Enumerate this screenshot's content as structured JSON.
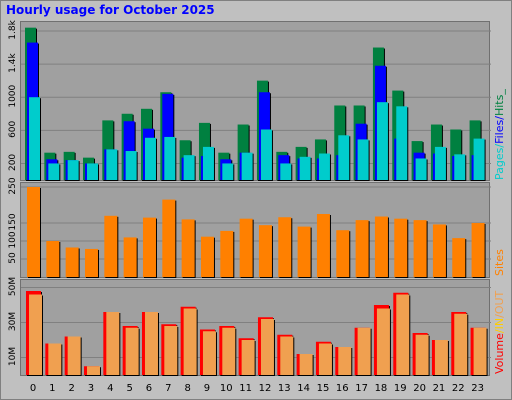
{
  "title": "Hourly usage for October 2025",
  "colors": {
    "pages": "#00cccc",
    "files": "#0000ff",
    "hits": "#008040",
    "sites": "#ff8000",
    "in": "#ffcc00",
    "out": "#f0a050",
    "volume": "#ff0000",
    "grid": "#808080",
    "bg": "#c0c0c0",
    "panel": "#a0a0a0"
  },
  "legend": {
    "pages": "Pages",
    "slash1": "/",
    "files": "Files",
    "slash2": "/",
    "hits": "Hits",
    "tail": "_",
    "sites": "Sites",
    "volume": "Volume",
    "slash3": "/",
    "in": "IN",
    "slash4": "/",
    "out": "OUT"
  },
  "chart_data": [
    {
      "type": "bar",
      "name": "hits-files-pages",
      "categories": [
        "0",
        "1",
        "2",
        "3",
        "4",
        "5",
        "6",
        "7",
        "8",
        "9",
        "10",
        "11",
        "12",
        "13",
        "14",
        "15",
        "16",
        "17",
        "18",
        "19",
        "20",
        "21",
        "22",
        "23"
      ],
      "ytick_labels": [
        "200",
        "600",
        "1000",
        "1.4k",
        "1.8k"
      ],
      "ytick_values": [
        200,
        600,
        1000,
        1400,
        1800
      ],
      "ylim": [
        0,
        1860
      ],
      "series": [
        {
          "name": "Hits",
          "values": [
            1840,
            330,
            340,
            270,
            720,
            800,
            860,
            1060,
            480,
            690,
            330,
            670,
            1200,
            340,
            400,
            490,
            900,
            900,
            1600,
            1080,
            470,
            670,
            610,
            720
          ]
        },
        {
          "name": "Files",
          "values": [
            1660,
            250,
            240,
            200,
            370,
            710,
            620,
            1040,
            270,
            290,
            250,
            330,
            1060,
            300,
            260,
            260,
            300,
            680,
            1380,
            500,
            330,
            320,
            290,
            300
          ]
        },
        {
          "name": "Pages",
          "values": [
            1000,
            200,
            240,
            200,
            370,
            350,
            510,
            520,
            300,
            400,
            200,
            330,
            610,
            200,
            280,
            320,
            540,
            490,
            940,
            890,
            260,
            400,
            310,
            500
          ]
        }
      ]
    },
    {
      "type": "bar",
      "name": "sites",
      "categories": [
        "0",
        "1",
        "2",
        "3",
        "4",
        "5",
        "6",
        "7",
        "8",
        "9",
        "10",
        "11",
        "12",
        "13",
        "14",
        "15",
        "16",
        "17",
        "18",
        "19",
        "20",
        "21",
        "22",
        "23"
      ],
      "ytick_labels": [
        "50",
        "100",
        "150",
        "250"
      ],
      "ytick_values": [
        50,
        100,
        150,
        250
      ],
      "ylim": [
        0,
        250
      ],
      "series": [
        {
          "name": "Sites",
          "values": [
            250,
            100,
            82,
            78,
            170,
            110,
            165,
            215,
            160,
            112,
            128,
            162,
            144,
            166,
            140,
            175,
            130,
            158,
            168,
            162,
            158,
            146,
            108,
            150
          ]
        }
      ]
    },
    {
      "type": "bar",
      "name": "volume",
      "categories": [
        "0",
        "1",
        "2",
        "3",
        "4",
        "5",
        "6",
        "7",
        "8",
        "9",
        "10",
        "11",
        "12",
        "13",
        "14",
        "15",
        "16",
        "17",
        "18",
        "19",
        "20",
        "21",
        "22",
        "23"
      ],
      "ytick_labels": [
        "10M",
        "30M",
        "50M"
      ],
      "ytick_values": [
        10,
        30,
        50
      ],
      "ylim": [
        0,
        52
      ],
      "series": [
        {
          "name": "Volume",
          "values": [
            48,
            18,
            22,
            5,
            36,
            28,
            36,
            29,
            39,
            26,
            28,
            21,
            33,
            23,
            12,
            19,
            16,
            27,
            40,
            47,
            24,
            20,
            36,
            27
          ]
        },
        {
          "name": "IN/OUT",
          "values": [
            46,
            18,
            22,
            5,
            36,
            27,
            36,
            28,
            38,
            25,
            27,
            20,
            32,
            22,
            12,
            18,
            16,
            27,
            38,
            46,
            23,
            20,
            35,
            27
          ]
        }
      ]
    }
  ]
}
